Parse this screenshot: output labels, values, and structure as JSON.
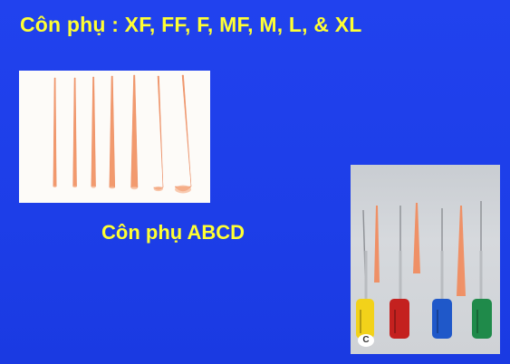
{
  "slide": {
    "title": "Côn phụ : XF, FF, F, MF, M, L, & XL",
    "caption": "Côn phụ ABCD",
    "photo_files_label": "C"
  },
  "colors": {
    "background": "#1f3fe6",
    "title_text": "#ffff33",
    "cone": "#f29a6e",
    "file_handles": [
      "#f2d21a",
      "#c4211f",
      "#1f58c9",
      "#1f8a4a"
    ]
  }
}
